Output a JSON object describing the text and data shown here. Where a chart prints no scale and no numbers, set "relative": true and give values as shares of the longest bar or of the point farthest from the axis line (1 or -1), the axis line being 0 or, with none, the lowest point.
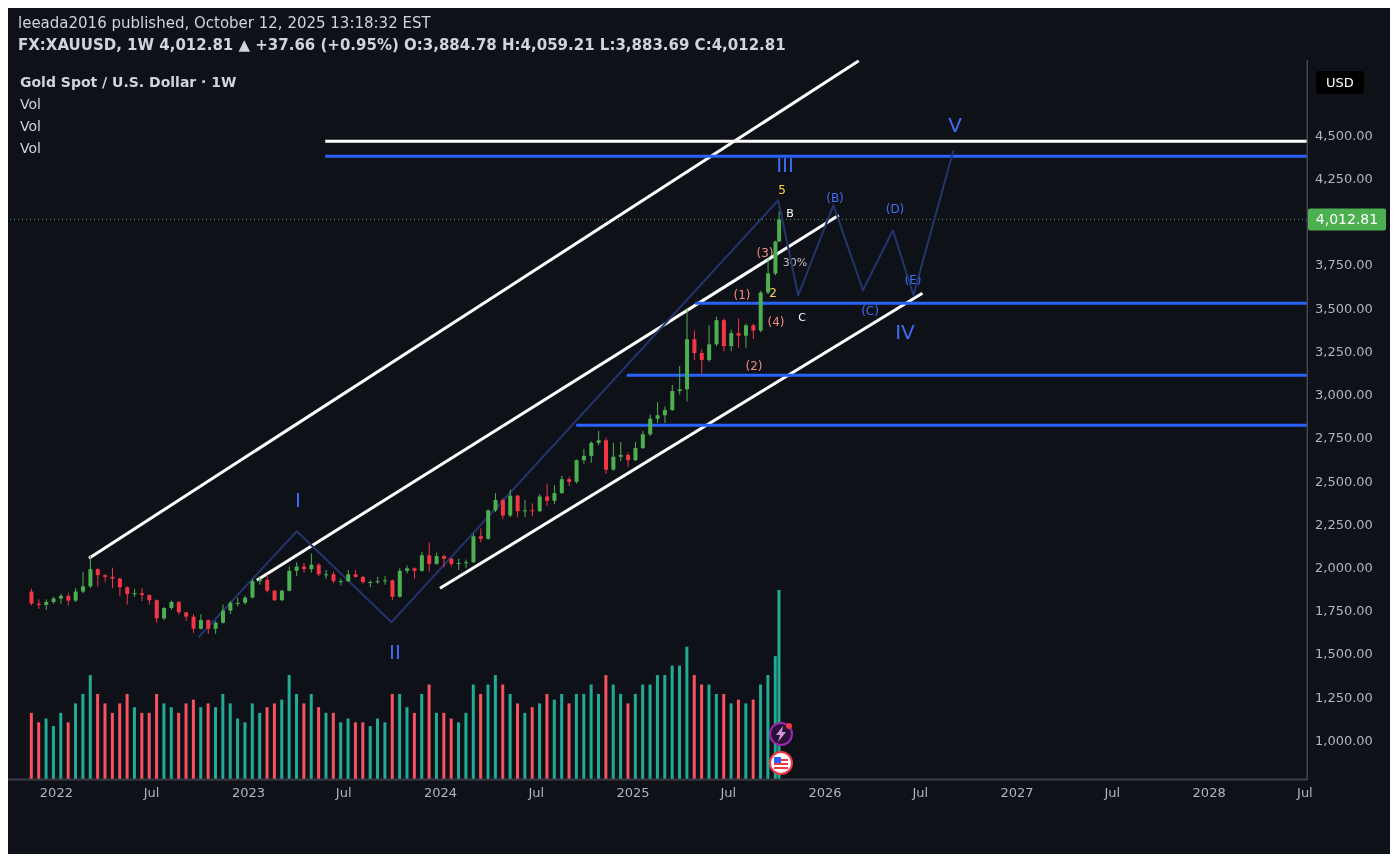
{
  "chart_data": [
    {
      "type": "candlestick",
      "title": "Gold Spot / U.S. Dollar · 1W",
      "subtitle": "FX:XAUUSD, 1W 4,012.81 ▲ +37.66 (+0.95%) O:3,884.78 H:4,059.21 L:3,883.69 C:4,012.81",
      "annotations": [
        "leeada2016 published, October 12, 2025 13:18:32 EST",
        "Vol",
        "Vol",
        "Vol",
        "USD",
        "I",
        "II",
        "III",
        "IV",
        "V",
        "(B)",
        "(C)",
        "(D)",
        "(E)",
        "(1)",
        "(2)",
        "(3)",
        "(4)",
        "30%",
        "B",
        "C",
        "5",
        "2"
      ],
      "x": [
        "2021-11-15",
        "2021-11-29",
        "2021-12-13",
        "2021-12-27",
        "2022-01-10",
        "2022-01-24",
        "2022-02-07",
        "2022-02-21",
        "2022-03-07",
        "2022-03-21",
        "2022-04-04",
        "2022-04-18",
        "2022-05-02",
        "2022-05-16",
        "2022-05-30",
        "2022-06-13",
        "2022-06-27",
        "2022-07-11",
        "2022-07-25",
        "2022-08-08",
        "2022-08-22",
        "2022-09-05",
        "2022-09-19",
        "2022-10-03",
        "2022-10-17",
        "2022-10-31",
        "2022-11-14",
        "2022-11-28",
        "2022-12-12",
        "2022-12-26",
        "2023-01-09",
        "2023-01-23",
        "2023-02-06",
        "2023-02-20",
        "2023-03-06",
        "2023-03-20",
        "2023-04-03",
        "2023-04-17",
        "2023-05-01",
        "2023-05-15",
        "2023-05-29",
        "2023-06-12",
        "2023-06-26",
        "2023-07-10",
        "2023-07-24",
        "2023-08-07",
        "2023-08-21",
        "2023-09-04",
        "2023-09-18",
        "2023-10-02",
        "2023-10-16",
        "2023-10-30",
        "2023-11-13",
        "2023-11-27",
        "2023-12-11",
        "2023-12-25",
        "2024-01-08",
        "2024-01-22",
        "2024-02-05",
        "2024-02-19",
        "2024-03-04",
        "2024-03-18",
        "2024-04-01",
        "2024-04-15",
        "2024-04-29",
        "2024-05-13",
        "2024-05-27",
        "2024-06-10",
        "2024-06-24",
        "2024-07-08",
        "2024-07-22",
        "2024-08-05",
        "2024-08-19",
        "2024-09-02",
        "2024-09-16",
        "2024-09-30",
        "2024-10-14",
        "2024-10-28",
        "2024-11-11",
        "2024-11-25",
        "2024-12-09",
        "2024-12-23",
        "2025-01-06",
        "2025-01-20",
        "2025-02-03",
        "2025-02-17",
        "2025-03-03",
        "2025-03-17",
        "2025-03-31",
        "2025-04-14",
        "2025-04-28",
        "2025-05-12",
        "2025-05-26",
        "2025-06-09",
        "2025-06-23",
        "2025-07-07",
        "2025-07-21",
        "2025-08-04",
        "2025-08-18",
        "2025-09-01",
        "2025-09-15",
        "2025-09-29",
        "2025-10-06"
      ],
      "ohlc": [
        [
          1860,
          1877,
          1780,
          1790
        ],
        [
          1790,
          1815,
          1760,
          1783
        ],
        [
          1783,
          1815,
          1753,
          1800
        ],
        [
          1800,
          1830,
          1790,
          1820
        ],
        [
          1820,
          1848,
          1790,
          1835
        ],
        [
          1835,
          1853,
          1780,
          1808
        ],
        [
          1808,
          1880,
          1800,
          1860
        ],
        [
          1860,
          1975,
          1850,
          1890
        ],
        [
          1890,
          2070,
          1880,
          1990
        ],
        [
          1990,
          1995,
          1890,
          1955
        ],
        [
          1955,
          1960,
          1915,
          1945
        ],
        [
          1945,
          1998,
          1880,
          1935
        ],
        [
          1935,
          1940,
          1835,
          1885
        ],
        [
          1885,
          1890,
          1785,
          1845
        ],
        [
          1845,
          1875,
          1830,
          1850
        ],
        [
          1850,
          1880,
          1805,
          1840
        ],
        [
          1840,
          1845,
          1785,
          1810
        ],
        [
          1810,
          1815,
          1680,
          1705
        ],
        [
          1705,
          1770,
          1695,
          1765
        ],
        [
          1765,
          1808,
          1755,
          1800
        ],
        [
          1800,
          1805,
          1728,
          1740
        ],
        [
          1740,
          1740,
          1690,
          1715
        ],
        [
          1715,
          1730,
          1620,
          1645
        ],
        [
          1645,
          1730,
          1640,
          1695
        ],
        [
          1695,
          1700,
          1615,
          1645
        ],
        [
          1645,
          1690,
          1615,
          1680
        ],
        [
          1680,
          1785,
          1675,
          1750
        ],
        [
          1750,
          1805,
          1730,
          1795
        ],
        [
          1795,
          1825,
          1775,
          1795
        ],
        [
          1795,
          1835,
          1785,
          1825
        ],
        [
          1825,
          1935,
          1820,
          1920
        ],
        [
          1920,
          1950,
          1900,
          1928
        ],
        [
          1928,
          1960,
          1855,
          1865
        ],
        [
          1865,
          1870,
          1805,
          1810
        ],
        [
          1810,
          1870,
          1805,
          1865
        ],
        [
          1865,
          2005,
          1860,
          1980
        ],
        [
          1980,
          2030,
          1950,
          2005
        ],
        [
          2005,
          2025,
          1970,
          1990
        ],
        [
          1990,
          2080,
          1970,
          2015
        ],
        [
          2015,
          2025,
          1950,
          1960
        ],
        [
          1960,
          1985,
          1935,
          1960
        ],
        [
          1960,
          1975,
          1910,
          1920
        ],
        [
          1920,
          1935,
          1895,
          1920
        ],
        [
          1920,
          1985,
          1915,
          1960
        ],
        [
          1960,
          1985,
          1940,
          1945
        ],
        [
          1945,
          1950,
          1905,
          1915
        ],
        [
          1915,
          1925,
          1885,
          1915
        ],
        [
          1915,
          1945,
          1905,
          1920
        ],
        [
          1920,
          1950,
          1900,
          1925
        ],
        [
          1925,
          1930,
          1810,
          1830
        ],
        [
          1830,
          1995,
          1825,
          1980
        ],
        [
          1980,
          2010,
          1965,
          1995
        ],
        [
          1995,
          2000,
          1935,
          1980
        ],
        [
          1980,
          2090,
          1975,
          2070
        ],
        [
          2070,
          2145,
          1975,
          2020
        ],
        [
          2020,
          2085,
          2015,
          2065
        ],
        [
          2065,
          2075,
          2000,
          2050
        ],
        [
          2050,
          2055,
          2005,
          2020
        ],
        [
          2020,
          2050,
          1985,
          2025
        ],
        [
          2025,
          2045,
          1995,
          2030
        ],
        [
          2030,
          2195,
          2025,
          2180
        ],
        [
          2180,
          2225,
          2145,
          2165
        ],
        [
          2165,
          2335,
          2160,
          2330
        ],
        [
          2330,
          2430,
          2320,
          2390
        ],
        [
          2390,
          2400,
          2280,
          2300
        ],
        [
          2300,
          2450,
          2290,
          2415
        ],
        [
          2415,
          2420,
          2290,
          2325
        ],
        [
          2325,
          2390,
          2290,
          2330
        ],
        [
          2330,
          2370,
          2295,
          2325
        ],
        [
          2325,
          2425,
          2320,
          2410
        ],
        [
          2410,
          2485,
          2355,
          2385
        ],
        [
          2385,
          2475,
          2365,
          2430
        ],
        [
          2430,
          2530,
          2425,
          2510
        ],
        [
          2510,
          2525,
          2470,
          2495
        ],
        [
          2495,
          2625,
          2485,
          2620
        ],
        [
          2620,
          2685,
          2600,
          2645
        ],
        [
          2645,
          2730,
          2605,
          2720
        ],
        [
          2720,
          2790,
          2705,
          2735
        ],
        [
          2735,
          2750,
          2540,
          2565
        ],
        [
          2565,
          2720,
          2560,
          2640
        ],
        [
          2640,
          2725,
          2615,
          2650
        ],
        [
          2650,
          2665,
          2580,
          2620
        ],
        [
          2620,
          2725,
          2615,
          2690
        ],
        [
          2690,
          2790,
          2685,
          2770
        ],
        [
          2770,
          2885,
          2760,
          2860
        ],
        [
          2860,
          2955,
          2835,
          2880
        ],
        [
          2880,
          2930,
          2835,
          2910
        ],
        [
          2910,
          3055,
          2905,
          3020
        ],
        [
          3020,
          3165,
          3000,
          3030
        ],
        [
          3030,
          3500,
          2960,
          3320
        ],
        [
          3320,
          3370,
          3200,
          3240
        ],
        [
          3240,
          3260,
          3120,
          3200
        ],
        [
          3200,
          3400,
          3190,
          3290
        ],
        [
          3290,
          3450,
          3280,
          3430
        ],
        [
          3430,
          3440,
          3250,
          3280
        ],
        [
          3280,
          3375,
          3250,
          3355
        ],
        [
          3355,
          3440,
          3270,
          3340
        ],
        [
          3340,
          3410,
          3270,
          3400
        ],
        [
          3400,
          3410,
          3320,
          3370
        ],
        [
          3370,
          3600,
          3360,
          3590
        ],
        [
          3590,
          3790,
          3580,
          3700
        ],
        [
          3700,
          3890,
          3690,
          3885
        ],
        [
          3884.78,
          4059.21,
          3883.69,
          4012.81
        ]
      ],
      "colors": [
        "#f23645",
        "#f23645",
        "#4caf50",
        "#4caf50",
        "#4caf50",
        "#f23645",
        "#4caf50",
        "#4caf50",
        "#4caf50",
        "#f23645",
        "#f23645",
        "#f23645",
        "#f23645",
        "#f23645",
        "#4caf50",
        "#f23645",
        "#f23645",
        "#f23645",
        "#4caf50",
        "#4caf50",
        "#f23645",
        "#f23645",
        "#f23645",
        "#4caf50",
        "#f23645",
        "#4caf50",
        "#4caf50",
        "#4caf50",
        "#4caf50",
        "#4caf50",
        "#4caf50",
        "#4caf50",
        "#f23645",
        "#f23645",
        "#4caf50",
        "#4caf50",
        "#4caf50",
        "#f23645",
        "#4caf50",
        "#f23645",
        "#4caf50",
        "#f23645",
        "#4caf50",
        "#4caf50",
        "#f23645",
        "#f23645",
        "#4caf50",
        "#4caf50",
        "#4caf50",
        "#f23645",
        "#4caf50",
        "#4caf50",
        "#f23645",
        "#4caf50",
        "#f23645",
        "#4caf50",
        "#f23645",
        "#f23645",
        "#4caf50",
        "#4caf50",
        "#4caf50",
        "#f23645",
        "#4caf50",
        "#4caf50",
        "#f23645",
        "#4caf50",
        "#f23645",
        "#4caf50",
        "#f23645",
        "#4caf50",
        "#f23645",
        "#4caf50",
        "#4caf50",
        "#f23645",
        "#4caf50",
        "#4caf50",
        "#4caf50",
        "#4caf50",
        "#f23645",
        "#4caf50",
        "#4caf50",
        "#f23645",
        "#4caf50",
        "#4caf50",
        "#4caf50",
        "#4caf50",
        "#4caf50",
        "#4caf50",
        "#4caf50",
        "#4caf50",
        "#f23645",
        "#f23645",
        "#4caf50",
        "#4caf50",
        "#f23645",
        "#4caf50",
        "#f23645",
        "#4caf50",
        "#f23645",
        "#4caf50",
        "#4caf50",
        "#4caf50",
        "#4caf50"
      ],
      "series": [
        {
          "type": "line",
          "color": "#ffffff",
          "x": [
            "2022-03-04",
            "2026-03-06"
          ],
          "values": [
            2053,
            4930
          ]
        },
        {
          "type": "line",
          "color": "#ffffff",
          "x": [
            "2023-01-17",
            "2026-01-27"
          ],
          "values": [
            1926,
            4037
          ]
        },
        {
          "type": "line",
          "color": "#ffffff",
          "x": [
            "2023-12-31",
            "2026-07-05"
          ],
          "values": [
            1879,
            3586
          ]
        },
        {
          "type": "line",
          "color": "#ffffff",
          "x": [
            "2023-05-27",
            "2028-07-05"
          ],
          "values": [
            4465,
            4465
          ]
        },
        {
          "type": "line",
          "color": "#2962ff",
          "x": [
            "2023-05-27",
            "2028-07-05"
          ],
          "values": [
            4378,
            4378
          ]
        },
        {
          "type": "line",
          "color": "#2962ff",
          "x": [
            "2025-04-29",
            "2028-07-05"
          ],
          "values": [
            3528,
            3528
          ]
        },
        {
          "type": "line",
          "color": "#2962ff",
          "x": [
            "2024-12-20",
            "2028-07-05"
          ],
          "values": [
            3112,
            3112
          ]
        },
        {
          "type": "line",
          "color": "#2962ff",
          "x": [
            "2024-09-15",
            "2028-07-05"
          ],
          "values": [
            2822,
            2822
          ]
        },
        {
          "type": "line",
          "color": "#24356e",
          "x": [
            "2022-09-28",
            "2023-04-03",
            "2023-09-30",
            "2025-10-04",
            "2025-11-11",
            "2026-01-17",
            "2026-03-14",
            "2026-05-10",
            "2026-06-18",
            "2026-09-02"
          ],
          "values": [
            1596,
            2209,
            1683,
            4124,
            3574,
            4095,
            3603,
            3950,
            3574,
            4413
          ]
        }
      ],
      "ref_lines": [
        {
          "axis": "y",
          "value": 4012.81,
          "label": "4,012.81",
          "color": "#4caf50",
          "line_style": "dotted"
        }
      ],
      "xlim": [
        "2021-10-01",
        "2028-07-05"
      ],
      "xticks": [
        {
          "value": "2022-01-01",
          "label": "2022"
        },
        {
          "value": "2022-07-01",
          "label": "Jul"
        },
        {
          "value": "2023-01-01",
          "label": "2023"
        },
        {
          "value": "2023-07-01",
          "label": "Jul"
        },
        {
          "value": "2024-01-01",
          "label": "2024"
        },
        {
          "value": "2024-07-01",
          "label": "Jul"
        },
        {
          "value": "2025-01-01",
          "label": "2025"
        },
        {
          "value": "2025-07-01",
          "label": "Jul"
        },
        {
          "value": "2026-01-01",
          "label": "2026"
        },
        {
          "value": "2026-07-01",
          "label": "Jul"
        },
        {
          "value": "2027-01-01",
          "label": "2027"
        },
        {
          "value": "2027-07-01",
          "label": "Jul"
        },
        {
          "value": "2028-01-01",
          "label": "2028"
        },
        {
          "value": "2028-07-01",
          "label": "Jul"
        }
      ],
      "ylim": [
        770,
        4935
      ],
      "yticks": [
        {
          "value": 1000,
          "label": "1,000.00"
        },
        {
          "value": 1250,
          "label": "1,250.00"
        },
        {
          "value": 1500,
          "label": "1,500.00"
        },
        {
          "value": 1750,
          "label": "1,750.00"
        },
        {
          "value": 2000,
          "label": "2,000.00"
        },
        {
          "value": 2250,
          "label": "2,250.00"
        },
        {
          "value": 2500,
          "label": "2,500.00"
        },
        {
          "value": 2750,
          "label": "2,750.00"
        },
        {
          "value": 3000,
          "label": "3,000.00"
        },
        {
          "value": 3250,
          "label": "3,250.00"
        },
        {
          "value": 3500,
          "label": "3,500.00"
        },
        {
          "value": 3750,
          "label": "3,750.00"
        },
        {
          "value": 4250,
          "label": "4,250.00"
        },
        {
          "value": 4500,
          "label": "4,500.00"
        }
      ],
      "legend": false
    },
    {
      "type": "bar",
      "relative": true,
      "tick_labels": false,
      "x": [
        "2021-11-15",
        "2021-11-29",
        "2021-12-13",
        "2021-12-27",
        "2022-01-10",
        "2022-01-24",
        "2022-02-07",
        "2022-02-21",
        "2022-03-07",
        "2022-03-21",
        "2022-04-04",
        "2022-04-18",
        "2022-05-02",
        "2022-05-16",
        "2022-05-30",
        "2022-06-13",
        "2022-06-27",
        "2022-07-11",
        "2022-07-25",
        "2022-08-08",
        "2022-08-22",
        "2022-09-05",
        "2022-09-19",
        "2022-10-03",
        "2022-10-17",
        "2022-10-31",
        "2022-11-14",
        "2022-11-28",
        "2022-12-12",
        "2022-12-26",
        "2023-01-09",
        "2023-01-23",
        "2023-02-06",
        "2023-02-20",
        "2023-03-06",
        "2023-03-20",
        "2023-04-03",
        "2023-04-17",
        "2023-05-01",
        "2023-05-15",
        "2023-05-29",
        "2023-06-12",
        "2023-06-26",
        "2023-07-10",
        "2023-07-24",
        "2023-08-07",
        "2023-08-21",
        "2023-09-04",
        "2023-09-18",
        "2023-10-02",
        "2023-10-16",
        "2023-10-30",
        "2023-11-13",
        "2023-11-27",
        "2023-12-11",
        "2023-12-25",
        "2024-01-08",
        "2024-01-22",
        "2024-02-05",
        "2024-02-19",
        "2024-03-04",
        "2024-03-18",
        "2024-04-01",
        "2024-04-15",
        "2024-04-29",
        "2024-05-13",
        "2024-05-27",
        "2024-06-10",
        "2024-06-24",
        "2024-07-08",
        "2024-07-22",
        "2024-08-05",
        "2024-08-19",
        "2024-09-02",
        "2024-09-16",
        "2024-09-30",
        "2024-10-14",
        "2024-10-28",
        "2024-11-11",
        "2024-11-25",
        "2024-12-09",
        "2024-12-23",
        "2025-01-06",
        "2025-01-20",
        "2025-02-03",
        "2025-02-17",
        "2025-03-03",
        "2025-03-17",
        "2025-03-31",
        "2025-04-14",
        "2025-04-28",
        "2025-05-12",
        "2025-05-26",
        "2025-06-09",
        "2025-06-23",
        "2025-07-07",
        "2025-07-21",
        "2025-08-04",
        "2025-08-18",
        "2025-09-01",
        "2025-09-15",
        "2025-09-29",
        "2025-10-06"
      ],
      "values": [
        0.35,
        0.3,
        0.32,
        0.28,
        0.35,
        0.3,
        0.4,
        0.45,
        0.55,
        0.45,
        0.4,
        0.35,
        0.4,
        0.45,
        0.38,
        0.35,
        0.35,
        0.45,
        0.4,
        0.38,
        0.35,
        0.4,
        0.42,
        0.38,
        0.4,
        0.38,
        0.45,
        0.4,
        0.32,
        0.3,
        0.4,
        0.35,
        0.38,
        0.4,
        0.42,
        0.55,
        0.45,
        0.4,
        0.45,
        0.38,
        0.35,
        0.35,
        0.3,
        0.32,
        0.3,
        0.3,
        0.28,
        0.32,
        0.3,
        0.45,
        0.45,
        0.38,
        0.35,
        0.45,
        0.5,
        0.35,
        0.35,
        0.32,
        0.3,
        0.35,
        0.5,
        0.45,
        0.5,
        0.55,
        0.5,
        0.45,
        0.4,
        0.35,
        0.38,
        0.4,
        0.45,
        0.42,
        0.45,
        0.4,
        0.45,
        0.45,
        0.5,
        0.45,
        0.55,
        0.5,
        0.45,
        0.4,
        0.45,
        0.5,
        0.5,
        0.55,
        0.55,
        0.6,
        0.6,
        0.7,
        0.55,
        0.5,
        0.5,
        0.45,
        0.45,
        0.4,
        0.42,
        0.4,
        0.42,
        0.5,
        0.55,
        0.65,
        1
      ],
      "colors": [
        "#f7525f",
        "#f7525f",
        "#22ab94",
        "#22ab94",
        "#22ab94",
        "#f7525f",
        "#22ab94",
        "#22ab94",
        "#22ab94",
        "#f7525f",
        "#f7525f",
        "#f7525f",
        "#f7525f",
        "#f7525f",
        "#22ab94",
        "#f7525f",
        "#f7525f",
        "#f7525f",
        "#22ab94",
        "#22ab94",
        "#f7525f",
        "#f7525f",
        "#f7525f",
        "#22ab94",
        "#f7525f",
        "#22ab94",
        "#22ab94",
        "#22ab94",
        "#22ab94",
        "#22ab94",
        "#22ab94",
        "#22ab94",
        "#f7525f",
        "#f7525f",
        "#22ab94",
        "#22ab94",
        "#22ab94",
        "#f7525f",
        "#22ab94",
        "#f7525f",
        "#22ab94",
        "#f7525f",
        "#22ab94",
        "#22ab94",
        "#f7525f",
        "#f7525f",
        "#22ab94",
        "#22ab94",
        "#22ab94",
        "#f7525f",
        "#22ab94",
        "#22ab94",
        "#f7525f",
        "#22ab94",
        "#f7525f",
        "#22ab94",
        "#f7525f",
        "#f7525f",
        "#22ab94",
        "#22ab94",
        "#22ab94",
        "#f7525f",
        "#22ab94",
        "#22ab94",
        "#f7525f",
        "#22ab94",
        "#f7525f",
        "#22ab94",
        "#f7525f",
        "#22ab94",
        "#f7525f",
        "#22ab94",
        "#22ab94",
        "#f7525f",
        "#22ab94",
        "#22ab94",
        "#22ab94",
        "#22ab94",
        "#f7525f",
        "#22ab94",
        "#22ab94",
        "#f7525f",
        "#22ab94",
        "#22ab94",
        "#22ab94",
        "#22ab94",
        "#22ab94",
        "#22ab94",
        "#22ab94",
        "#22ab94",
        "#f7525f",
        "#f7525f",
        "#22ab94",
        "#22ab94",
        "#f7525f",
        "#22ab94",
        "#f7525f",
        "#22ab94",
        "#f7525f",
        "#22ab94",
        "#22ab94",
        "#22ab94",
        "#22ab94"
      ],
      "xlim": [
        "2021-10-01",
        "2028-07-05"
      ]
    }
  ]
}
